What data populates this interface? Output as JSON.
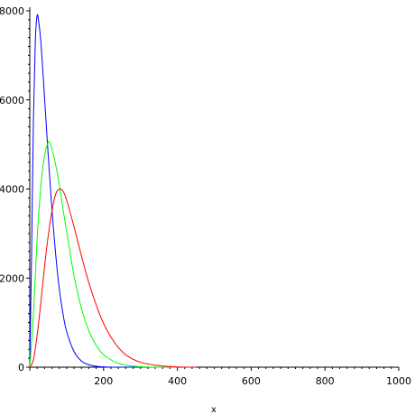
{
  "chart_data": {
    "type": "line",
    "title": "",
    "xlabel": "x",
    "ylabel": "",
    "xlim": [
      0,
      1000
    ],
    "ylim": [
      0,
      8000
    ],
    "x_ticks": [
      200,
      400,
      600,
      800,
      1000
    ],
    "y_ticks": [
      0,
      2000,
      4000,
      6000,
      8000
    ],
    "grid": false,
    "legend": "none",
    "series": [
      {
        "color": "#0000ff",
        "points": [
          [
            0,
            0
          ],
          [
            5,
            2600
          ],
          [
            10,
            5600
          ],
          [
            15,
            7300
          ],
          [
            20,
            7900
          ],
          [
            25,
            7700
          ],
          [
            30,
            7300
          ],
          [
            35,
            6700
          ],
          [
            40,
            6050
          ],
          [
            45,
            5400
          ],
          [
            50,
            4750
          ],
          [
            55,
            4150
          ],
          [
            60,
            3550
          ],
          [
            70,
            2550
          ],
          [
            80,
            1760
          ],
          [
            90,
            1200
          ],
          [
            100,
            800
          ],
          [
            120,
            350
          ],
          [
            140,
            140
          ],
          [
            160,
            55
          ],
          [
            180,
            20
          ],
          [
            200,
            8
          ],
          [
            240,
            0
          ],
          [
            400,
            0
          ]
        ]
      },
      {
        "color": "#00ff00",
        "points": [
          [
            0,
            0
          ],
          [
            10,
            1200
          ],
          [
            20,
            2900
          ],
          [
            30,
            4050
          ],
          [
            40,
            4750
          ],
          [
            50,
            5050
          ],
          [
            55,
            5020
          ],
          [
            60,
            4900
          ],
          [
            70,
            4550
          ],
          [
            80,
            4100
          ],
          [
            90,
            3550
          ],
          [
            100,
            3050
          ],
          [
            120,
            2050
          ],
          [
            140,
            1320
          ],
          [
            160,
            820
          ],
          [
            180,
            490
          ],
          [
            200,
            280
          ],
          [
            230,
            120
          ],
          [
            260,
            45
          ],
          [
            300,
            10
          ],
          [
            350,
            0
          ],
          [
            400,
            0
          ]
        ]
      },
      {
        "color": "#ff0000",
        "points": [
          [
            0,
            0
          ],
          [
            10,
            170
          ],
          [
            20,
            720
          ],
          [
            30,
            1450
          ],
          [
            40,
            2250
          ],
          [
            50,
            2950
          ],
          [
            60,
            3500
          ],
          [
            70,
            3880
          ],
          [
            80,
            4000
          ],
          [
            90,
            3950
          ],
          [
            100,
            3750
          ],
          [
            120,
            3150
          ],
          [
            140,
            2500
          ],
          [
            160,
            1900
          ],
          [
            180,
            1400
          ],
          [
            200,
            980
          ],
          [
            230,
            550
          ],
          [
            260,
            280
          ],
          [
            300,
            110
          ],
          [
            350,
            35
          ],
          [
            400,
            5
          ],
          [
            450,
            0
          ]
        ]
      }
    ]
  }
}
